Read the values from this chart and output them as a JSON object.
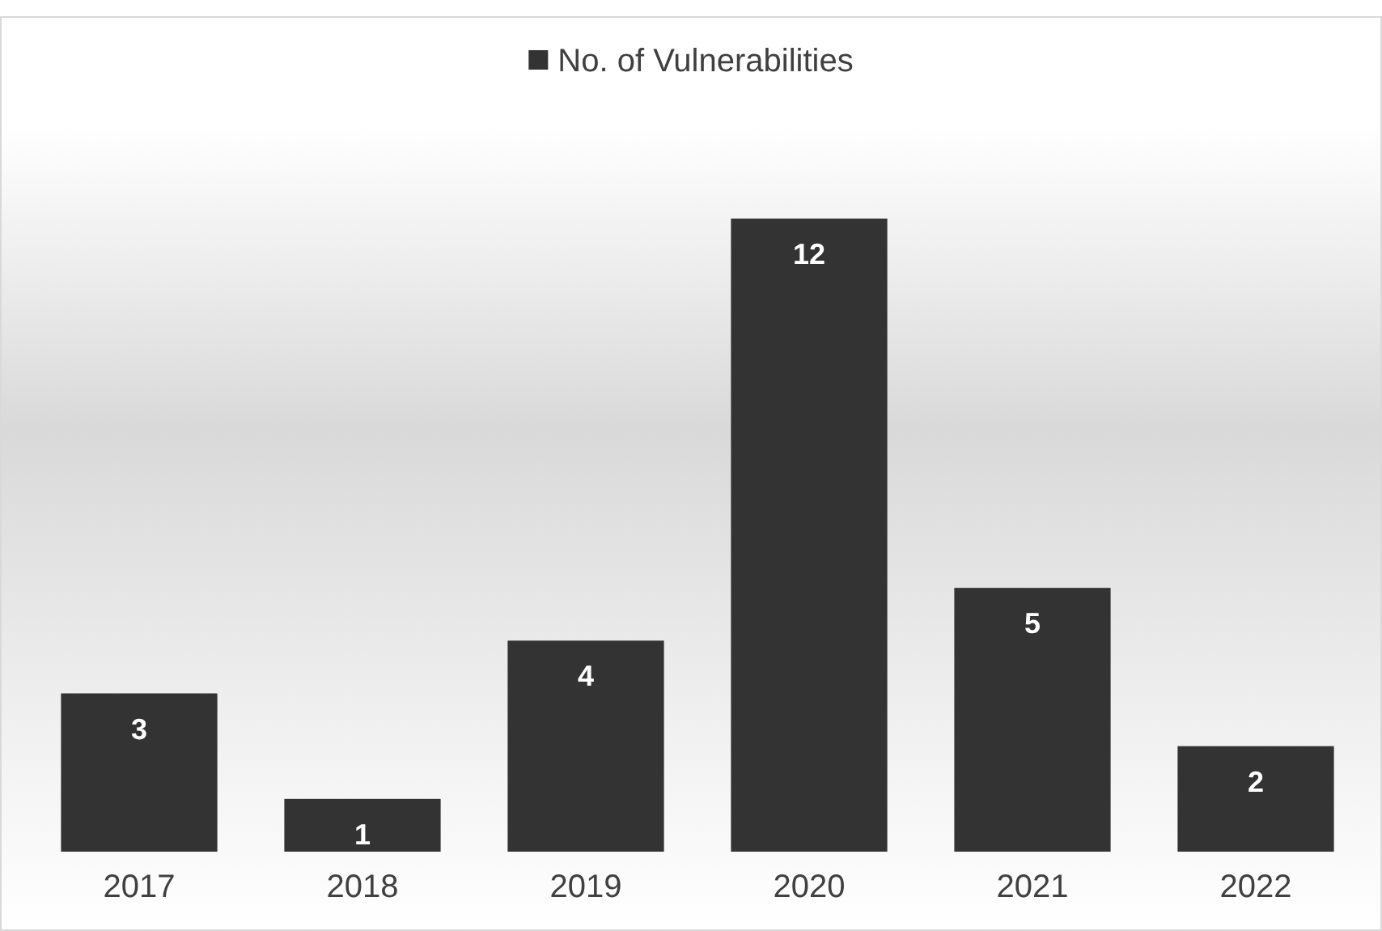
{
  "chart_data": {
    "type": "bar",
    "categories": [
      "2017",
      "2018",
      "2019",
      "2020",
      "2021",
      "2022"
    ],
    "series": [
      {
        "name": "No. of Vulnerabilities",
        "color": "#333333",
        "values": [
          3,
          1,
          4,
          12,
          5,
          2
        ]
      }
    ],
    "data_labels": true,
    "legend": "top",
    "grid": false
  }
}
